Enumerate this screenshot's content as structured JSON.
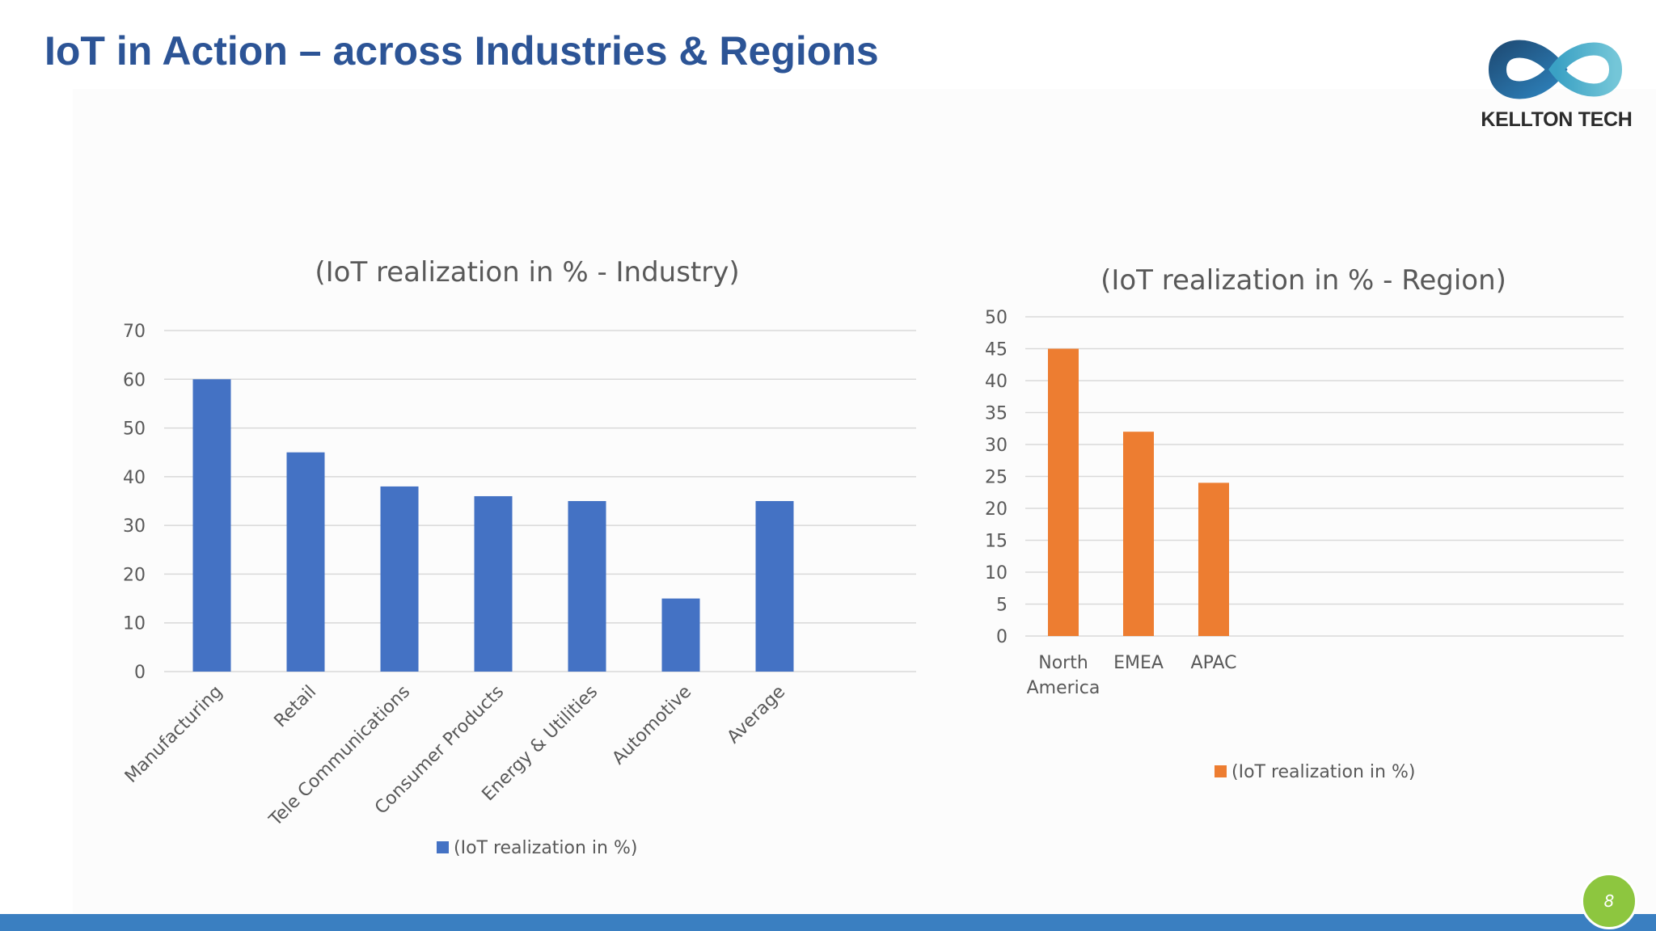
{
  "slide": {
    "title": "IoT in Action – across Industries & Regions",
    "page_number": "8"
  },
  "logo": {
    "text": "KELLTON TECH"
  },
  "colors": {
    "title": "#2c5496",
    "industry_bar": "#4472c4",
    "region_bar": "#ed7d31",
    "bottom_bar": "#3a7fc1",
    "page_badge": "#8dc63f"
  },
  "chart_data": [
    {
      "type": "bar",
      "title": "(IoT realization in % - Industry)",
      "categories": [
        "Manufacturing",
        "Retail",
        "Tele Communications",
        "Consumer Products",
        "Energy & Utilities",
        "Automotive",
        "Average"
      ],
      "series": [
        {
          "name": "(IoT realization in %)",
          "values": [
            60,
            45,
            38,
            36,
            35,
            15,
            35
          ]
        }
      ],
      "ylim": [
        0,
        70
      ],
      "yticks": [
        0,
        10,
        20,
        30,
        40,
        50,
        60,
        70
      ],
      "grid": true,
      "legend": "bottom",
      "xlabel_rotation": "45-degree"
    },
    {
      "type": "bar",
      "title": "(IoT realization in % - Region)",
      "categories": [
        "North America",
        "EMEA",
        "APAC"
      ],
      "series": [
        {
          "name": "(IoT realization in %)",
          "values": [
            45,
            32,
            24
          ]
        }
      ],
      "ylim": [
        0,
        50
      ],
      "yticks": [
        0,
        5,
        10,
        15,
        20,
        25,
        30,
        35,
        40,
        45,
        50
      ],
      "grid": true,
      "legend": "bottom"
    }
  ]
}
